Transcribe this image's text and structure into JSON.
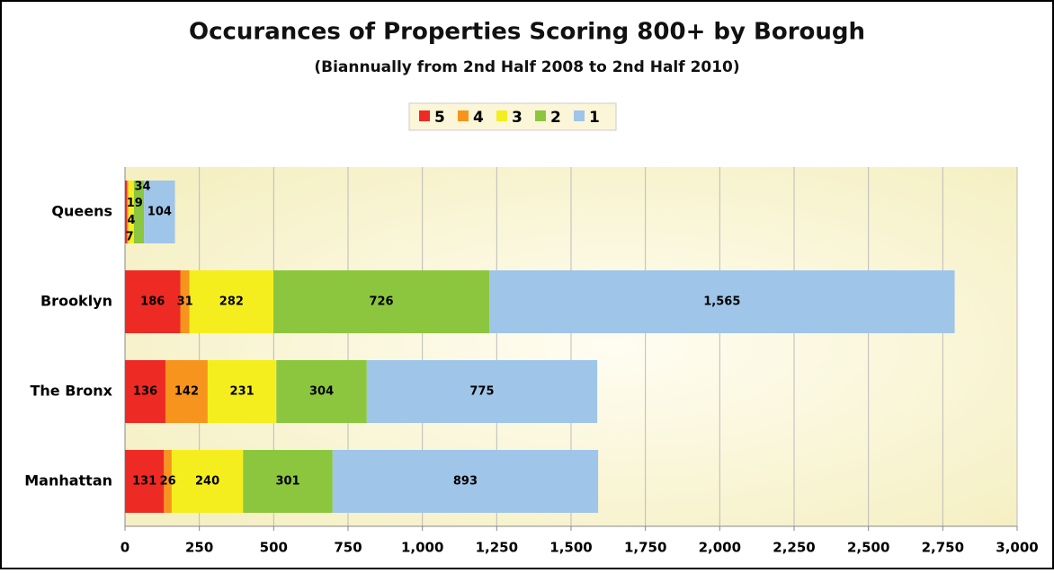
{
  "chart_data": {
    "type": "stacked-barh",
    "title": "Occurances of Properties Scoring 800+ by Borough",
    "subtitle": "(Biannually from 2nd Half 2008 to 2nd Half 2010)",
    "categories": [
      "Queens",
      "Brooklyn",
      "The Bronx",
      "Manhattan"
    ],
    "series": [
      {
        "name": "5",
        "color": "#ee2a24",
        "values": [
          7,
          186,
          136,
          131
        ]
      },
      {
        "name": "4",
        "color": "#f7941d",
        "values": [
          4,
          31,
          142,
          26
        ]
      },
      {
        "name": "3",
        "color": "#f5ee1f",
        "values": [
          19,
          282,
          231,
          240
        ]
      },
      {
        "name": "2",
        "color": "#8cc63f",
        "values": [
          34,
          726,
          304,
          301
        ]
      },
      {
        "name": "1",
        "color": "#9fc5e8",
        "values": [
          104,
          1565,
          775,
          893
        ],
        "value_labels": [
          "104",
          "1,565",
          "775",
          "893"
        ]
      }
    ],
    "xlim": [
      0,
      3000
    ],
    "xticks": [
      0,
      250,
      500,
      750,
      {
        "value": 1000,
        "label": "1,000"
      },
      {
        "value": 1250,
        "label": "1,250"
      },
      {
        "value": 1500,
        "label": "1,500"
      },
      {
        "value": 1750,
        "label": "1,750"
      },
      {
        "value": 2000,
        "label": "2,000"
      },
      {
        "value": 2250,
        "label": "2,250"
      },
      {
        "value": 2500,
        "label": "2,500"
      },
      {
        "value": 2750,
        "label": "2,750"
      },
      {
        "value": 3000,
        "label": "3,000"
      }
    ],
    "grid": true,
    "legend": "top"
  }
}
